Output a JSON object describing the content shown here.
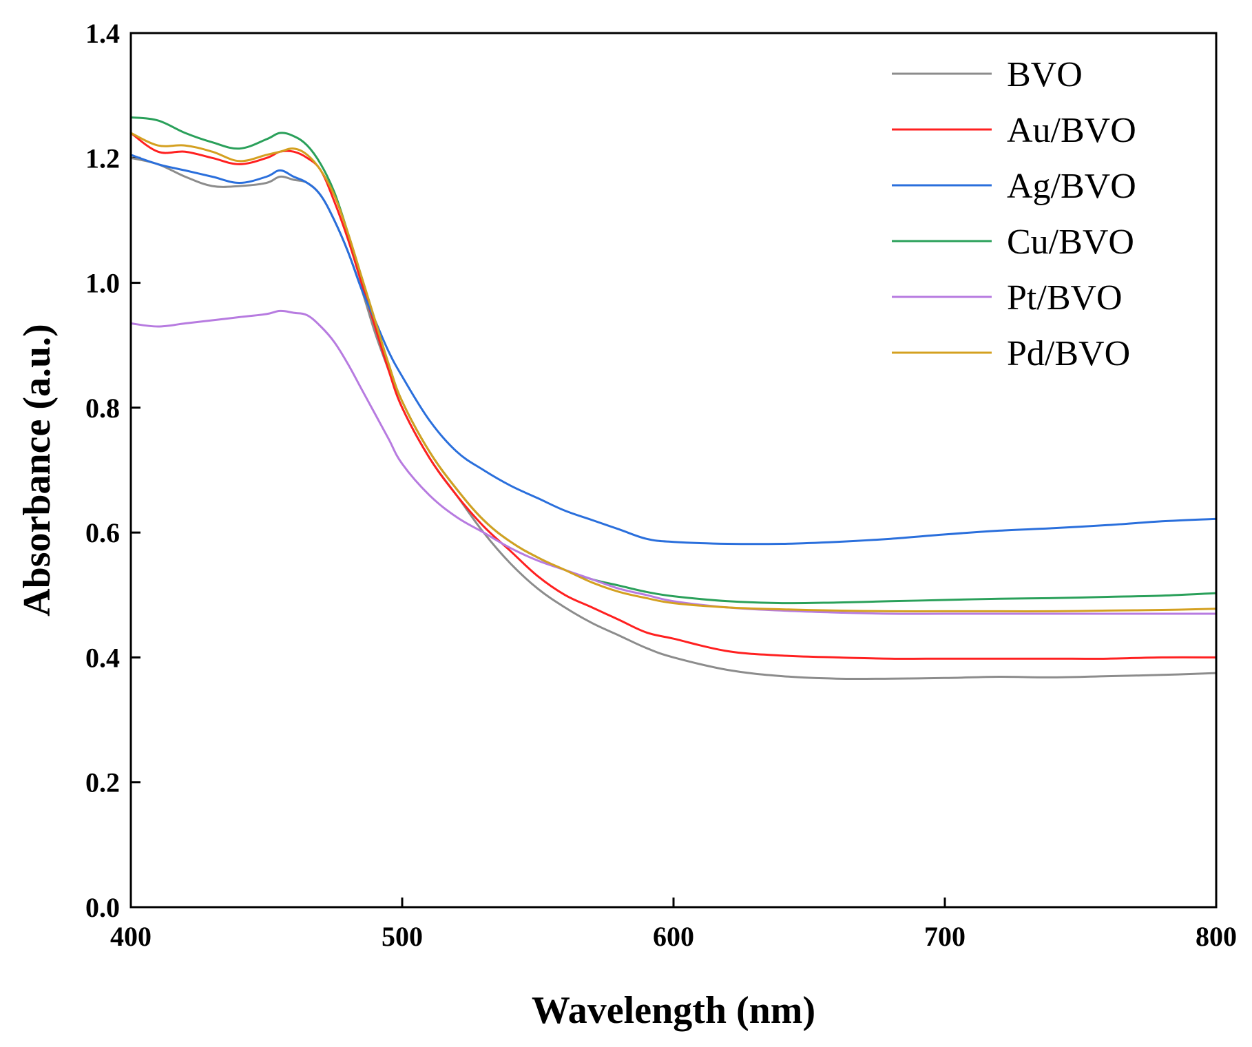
{
  "chart_data": {
    "type": "line",
    "title": "",
    "xlabel": "Wavelength (nm)",
    "ylabel": "Absorbance (a.u.)",
    "xlim": [
      400,
      800
    ],
    "ylim": [
      0.0,
      1.4
    ],
    "xticks": [
      400,
      500,
      600,
      700,
      800
    ],
    "xtick_labels": [
      "400",
      "500",
      "600",
      "700",
      "800"
    ],
    "yticks": [
      0.0,
      0.2,
      0.4,
      0.6,
      0.8,
      1.0,
      1.2,
      1.4
    ],
    "ytick_labels": [
      "0.0",
      "0.2",
      "0.4",
      "0.6",
      "0.8",
      "1.0",
      "1.2",
      "1.4"
    ],
    "grid": false,
    "legend_position": "top-right",
    "x": [
      400,
      410,
      420,
      430,
      440,
      450,
      455,
      460,
      465,
      470,
      475,
      480,
      485,
      490,
      495,
      500,
      510,
      520,
      530,
      540,
      550,
      560,
      570,
      580,
      590,
      600,
      620,
      640,
      660,
      680,
      700,
      720,
      740,
      760,
      780,
      800
    ],
    "series": [
      {
        "name": "BVO",
        "color": "#8c8c8c",
        "values": [
          1.2,
          1.19,
          1.17,
          1.155,
          1.155,
          1.16,
          1.17,
          1.165,
          1.16,
          1.14,
          1.1,
          1.05,
          0.99,
          0.92,
          0.86,
          0.8,
          0.72,
          0.66,
          0.6,
          0.55,
          0.51,
          0.48,
          0.455,
          0.435,
          0.415,
          0.4,
          0.38,
          0.37,
          0.366,
          0.366,
          0.367,
          0.369,
          0.368,
          0.37,
          0.372,
          0.375
        ]
      },
      {
        "name": "Au/BVO",
        "color": "#ff2020",
        "values": [
          1.24,
          1.21,
          1.21,
          1.2,
          1.19,
          1.2,
          1.21,
          1.21,
          1.2,
          1.18,
          1.13,
          1.07,
          1.0,
          0.93,
          0.86,
          0.8,
          0.72,
          0.66,
          0.61,
          0.57,
          0.53,
          0.5,
          0.48,
          0.46,
          0.44,
          0.43,
          0.41,
          0.403,
          0.4,
          0.398,
          0.398,
          0.398,
          0.398,
          0.398,
          0.4,
          0.4
        ]
      },
      {
        "name": "Ag/BVO",
        "color": "#2a6fdc",
        "values": [
          1.205,
          1.19,
          1.18,
          1.17,
          1.16,
          1.17,
          1.18,
          1.17,
          1.16,
          1.14,
          1.1,
          1.05,
          0.99,
          0.94,
          0.89,
          0.85,
          0.78,
          0.73,
          0.7,
          0.675,
          0.655,
          0.635,
          0.62,
          0.605,
          0.59,
          0.585,
          0.582,
          0.582,
          0.585,
          0.59,
          0.597,
          0.603,
          0.607,
          0.612,
          0.618,
          0.622
        ]
      },
      {
        "name": "Cu/BVO",
        "color": "#2aa05a",
        "values": [
          1.265,
          1.26,
          1.24,
          1.225,
          1.215,
          1.23,
          1.24,
          1.235,
          1.22,
          1.19,
          1.145,
          1.08,
          1.01,
          0.94,
          0.87,
          0.81,
          0.73,
          0.67,
          0.62,
          0.585,
          0.56,
          0.54,
          0.525,
          0.515,
          0.505,
          0.498,
          0.49,
          0.487,
          0.488,
          0.49,
          0.492,
          0.494,
          0.495,
          0.497,
          0.499,
          0.503
        ]
      },
      {
        "name": "Pt/BVO",
        "color": "#b77be0",
        "values": [
          0.935,
          0.93,
          0.935,
          0.94,
          0.945,
          0.95,
          0.955,
          0.952,
          0.948,
          0.93,
          0.905,
          0.87,
          0.83,
          0.79,
          0.75,
          0.71,
          0.66,
          0.625,
          0.6,
          0.575,
          0.555,
          0.54,
          0.525,
          0.51,
          0.5,
          0.49,
          0.48,
          0.475,
          0.472,
          0.47,
          0.47,
          0.47,
          0.47,
          0.47,
          0.47,
          0.47
        ]
      },
      {
        "name": "Pd/BVO",
        "color": "#d4a020",
        "values": [
          1.24,
          1.22,
          1.22,
          1.21,
          1.195,
          1.205,
          1.21,
          1.215,
          1.205,
          1.18,
          1.14,
          1.08,
          1.01,
          0.94,
          0.87,
          0.81,
          0.73,
          0.67,
          0.62,
          0.585,
          0.56,
          0.54,
          0.52,
          0.505,
          0.495,
          0.487,
          0.48,
          0.477,
          0.475,
          0.474,
          0.474,
          0.474,
          0.474,
          0.475,
          0.476,
          0.478
        ]
      }
    ]
  }
}
